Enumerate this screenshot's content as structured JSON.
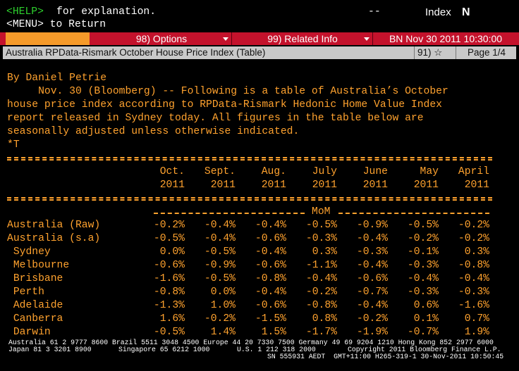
{
  "header": {
    "help_key": "<HELP>",
    "help_text": "for explanation.",
    "dashes": "--",
    "index_label": "Index",
    "logo": "N",
    "menu_line": "<MENU> to Return"
  },
  "toolbar": {
    "options": "98) Options",
    "related": "99) Related Info",
    "timestamp": "BN Nov 30 2011 10:30:00"
  },
  "titlebar": {
    "title": "Australia RPData-Rismark October House Price Index (Table)",
    "favorite": "91) ☆",
    "page": "Page 1/4"
  },
  "story": {
    "byline": "By Daniel Petrie",
    "paragraph": [
      "     Nov. 30 (Bloomberg) -- Following is a table of Australia’s October",
      "house price index according to RPData-Rismark Hedonic Home Value Index",
      "report released in Sydney today. All figures in the table below are",
      "seasonally adjusted unless otherwise indicated."
    ],
    "marker": "*T"
  },
  "table": {
    "columns": [
      {
        "month": "Oct.",
        "year": "2011"
      },
      {
        "month": "Sept.",
        "year": "2011"
      },
      {
        "month": "Aug.",
        "year": "2011"
      },
      {
        "month": "July",
        "year": "2011"
      },
      {
        "month": "June",
        "year": "2011"
      },
      {
        "month": "May",
        "year": "2011"
      },
      {
        "month": "April",
        "year": "2011"
      }
    ],
    "section": "MoM",
    "rows": [
      {
        "label": "Australia (Raw)",
        "values": [
          "-0.2%",
          "-0.4%",
          "-0.4%",
          "-0.5%",
          "-0.9%",
          "-0.5%",
          "-0.2%"
        ]
      },
      {
        "label": "Australia (s.a)",
        "values": [
          "-0.5%",
          "-0.4%",
          "-0.6%",
          "-0.3%",
          "-0.4%",
          "-0.2%",
          "-0.2%"
        ]
      },
      {
        "label": " Sydney",
        "values": [
          "0.0%",
          "-0.5%",
          "-0.4%",
          "0.3%",
          "-0.3%",
          "-0.1%",
          "0.3%"
        ]
      },
      {
        "label": " Melbourne",
        "values": [
          "-0.6%",
          "-0.9%",
          "-0.6%",
          "-1.1%",
          "-0.4%",
          "-0.3%",
          "-0.8%"
        ]
      },
      {
        "label": " Brisbane",
        "values": [
          "-1.6%",
          "-0.5%",
          "-0.8%",
          "-0.4%",
          "-0.6%",
          "-0.4%",
          "-0.4%"
        ]
      },
      {
        "label": " Perth",
        "values": [
          "-0.8%",
          "0.0%",
          "-0.4%",
          "-0.2%",
          "-0.7%",
          "-0.3%",
          "-0.3%"
        ]
      },
      {
        "label": " Adelaide",
        "values": [
          "-1.3%",
          "1.0%",
          "-0.6%",
          "-0.8%",
          "-0.4%",
          "0.6%",
          "-1.6%"
        ]
      },
      {
        "label": " Canberra",
        "values": [
          "1.6%",
          "-0.2%",
          "-1.5%",
          "0.8%",
          "-0.2%",
          "0.1%",
          "0.7%"
        ]
      },
      {
        "label": " Darwin",
        "values": [
          "-0.5%",
          "1.4%",
          "1.5%",
          "-1.7%",
          "-1.9%",
          "-0.7%",
          "1.9%"
        ]
      }
    ]
  },
  "footer": {
    "line1": "Australia 61 2 9777 8600 Brazil 5511 3048 4500 Europe 44 20 7330 7500 Germany 49 69 9204 1210 Hong Kong 852 2977 6000",
    "japan": "Japan 81 3 3201 8900",
    "singapore": "Singapore 65 6212 1000",
    "us": "U.S. 1 212 318 2000",
    "copyright": "Copyright 2011 Bloomberg Finance L.P.",
    "session": "SN 555931 AEDT  GMT+11:00 H265-319-1 30-Nov-2011 10:50:45"
  }
}
